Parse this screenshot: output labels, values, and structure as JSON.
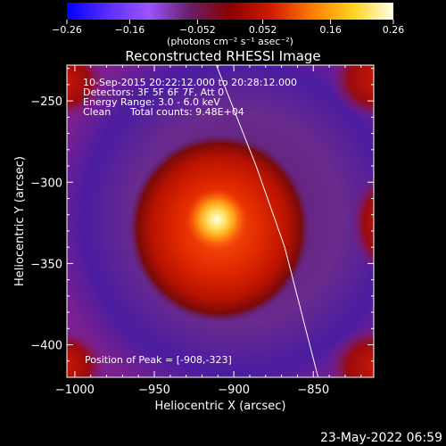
{
  "chart_data": {
    "type": "heatmap",
    "title": "Reconstructed RHESSI Image",
    "xlabel": "Heliocentric X (arcsec)",
    "ylabel": "Heliocentric Y (arcsec)",
    "xlim": [
      -1005,
      -812
    ],
    "ylim": [
      -420,
      -228
    ],
    "x_ticks": [
      {
        "value": -1000,
        "label": "−1000"
      },
      {
        "value": -950,
        "label": "−950"
      },
      {
        "value": -900,
        "label": "−900"
      },
      {
        "value": -850,
        "label": "−850"
      }
    ],
    "y_ticks": [
      {
        "value": -250,
        "label": "−250"
      },
      {
        "value": -300,
        "label": "−300"
      },
      {
        "value": -350,
        "label": "−350"
      },
      {
        "value": -400,
        "label": "−400"
      }
    ],
    "colorbar": {
      "min": -0.26,
      "max": 0.26,
      "ticks": [
        {
          "value": -0.26,
          "label": "−0.26"
        },
        {
          "value": -0.16,
          "label": "−0.16"
        },
        {
          "value": -0.052,
          "label": "−0.052"
        },
        {
          "value": 0.052,
          "label": "0.052"
        },
        {
          "value": 0.16,
          "label": "0.16"
        },
        {
          "value": 0.26,
          "label": "0.26"
        }
      ],
      "unit_label": "(photons cm⁻² s⁻¹ asec⁻²)",
      "colors": [
        "#0000ff",
        "#5a2dff",
        "#9a55ff",
        "#6a1f6a",
        "#8c0000",
        "#d21a00",
        "#ff7a00",
        "#ffd21e",
        "#ffffe6"
      ]
    },
    "peak": {
      "x": -908,
      "y": -323
    },
    "limb_line": [
      [
        -911,
        -228
      ],
      [
        -886,
        -290
      ],
      [
        -868,
        -340
      ],
      [
        -847,
        -420
      ]
    ]
  },
  "annotations": {
    "time_range": "10-Sep-2015 20:22:12.000 to 20:28:12.000",
    "detectors": "Detectors: 3F 5F 6F 7F, Att 0",
    "energy_range": "Energy Range: 3.0 - 6.0 keV",
    "clean_label": "Clean",
    "total_counts": "Total counts: 9.48E+04",
    "peak_position": "Position of Peak = [-908,-323]"
  },
  "footer": {
    "date_stamp": "23-May-2022 06:59"
  }
}
